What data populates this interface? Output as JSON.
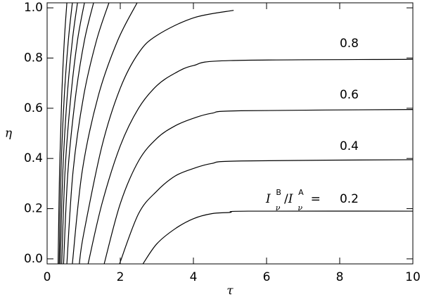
{
  "chart_data": {
    "type": "line",
    "xlabel": "τ",
    "ylabel": "η",
    "xlim": [
      0,
      10
    ],
    "ylim": [
      -0.02,
      1.02
    ],
    "xticks": [
      0,
      2,
      4,
      6,
      8,
      10
    ],
    "yticks": [
      {
        "value": 0,
        "label": "0.0"
      },
      0.2,
      0.4,
      0.6,
      0.8,
      {
        "value": 1,
        "label": "1.0"
      }
    ],
    "color": "#000000",
    "annotations": [
      "0.8",
      "0.6",
      "0.4",
      "0.2"
    ],
    "ratio_label": [
      "I",
      "ν",
      "B",
      "/",
      "I",
      "ν",
      "A",
      "="
    ],
    "series": [
      {
        "x": [
          2.62,
          3,
          3.5,
          4,
          4.5,
          5,
          5.5,
          10
        ],
        "values": [
          -0.02,
          0.06,
          0.12,
          0.16,
          0.18,
          0.185,
          0.19,
          0.19
        ]
      },
      {
        "x": [
          1.98,
          2.5,
          3,
          3.5,
          4,
          4.5,
          5.3,
          10
        ],
        "values": [
          -0.02,
          0.18,
          0.27,
          0.33,
          0.36,
          0.38,
          0.39,
          0.395
        ]
      },
      {
        "x": [
          1.56,
          2,
          2.5,
          3,
          3.5,
          4,
          4.5,
          5.3,
          10
        ],
        "values": [
          -0.02,
          0.22,
          0.39,
          0.48,
          0.53,
          0.56,
          0.58,
          0.59,
          0.595
        ]
      },
      {
        "x": [
          1.12,
          1.5,
          2,
          2.5,
          3,
          3.5,
          4,
          5,
          10
        ],
        "values": [
          -0.02,
          0.22,
          0.45,
          0.6,
          0.69,
          0.74,
          0.77,
          0.79,
          0.795
        ]
      },
      {
        "x": [
          0.88,
          1.0,
          1.5,
          2,
          2.5,
          3,
          4,
          5.1
        ],
        "values": [
          -0.02,
          0.1,
          0.45,
          0.68,
          0.82,
          0.89,
          0.96,
          0.99
        ]
      },
      {
        "x": [
          0.69,
          0.96,
          1.4,
          1.93,
          2.46
        ],
        "values": [
          -0.02,
          0.35,
          0.65,
          0.87,
          1.02
        ]
      },
      {
        "x": [
          0.54,
          0.71,
          1.0,
          1.35,
          1.69
        ],
        "values": [
          -0.02,
          0.35,
          0.65,
          0.87,
          1.02
        ]
      },
      {
        "x": [
          0.45,
          0.57,
          0.78,
          1.02,
          1.27
        ],
        "values": [
          -0.02,
          0.35,
          0.65,
          0.87,
          1.02
        ]
      },
      {
        "x": [
          0.4,
          0.49,
          0.65,
          0.83,
          1.02
        ],
        "values": [
          -0.02,
          0.35,
          0.65,
          0.87,
          1.02
        ]
      },
      {
        "x": [
          0.36,
          0.43,
          0.55,
          0.69,
          0.83
        ],
        "values": [
          -0.02,
          0.35,
          0.65,
          0.87,
          1.02
        ]
      },
      {
        "x": [
          0.33,
          0.38,
          0.47,
          0.58,
          0.69
        ],
        "values": [
          -0.02,
          0.35,
          0.65,
          0.87,
          1.02
        ]
      },
      {
        "x": [
          0.3,
          0.34,
          0.4,
          0.47,
          0.54
        ],
        "values": [
          -0.02,
          0.35,
          0.65,
          0.87,
          1.02
        ]
      }
    ]
  }
}
